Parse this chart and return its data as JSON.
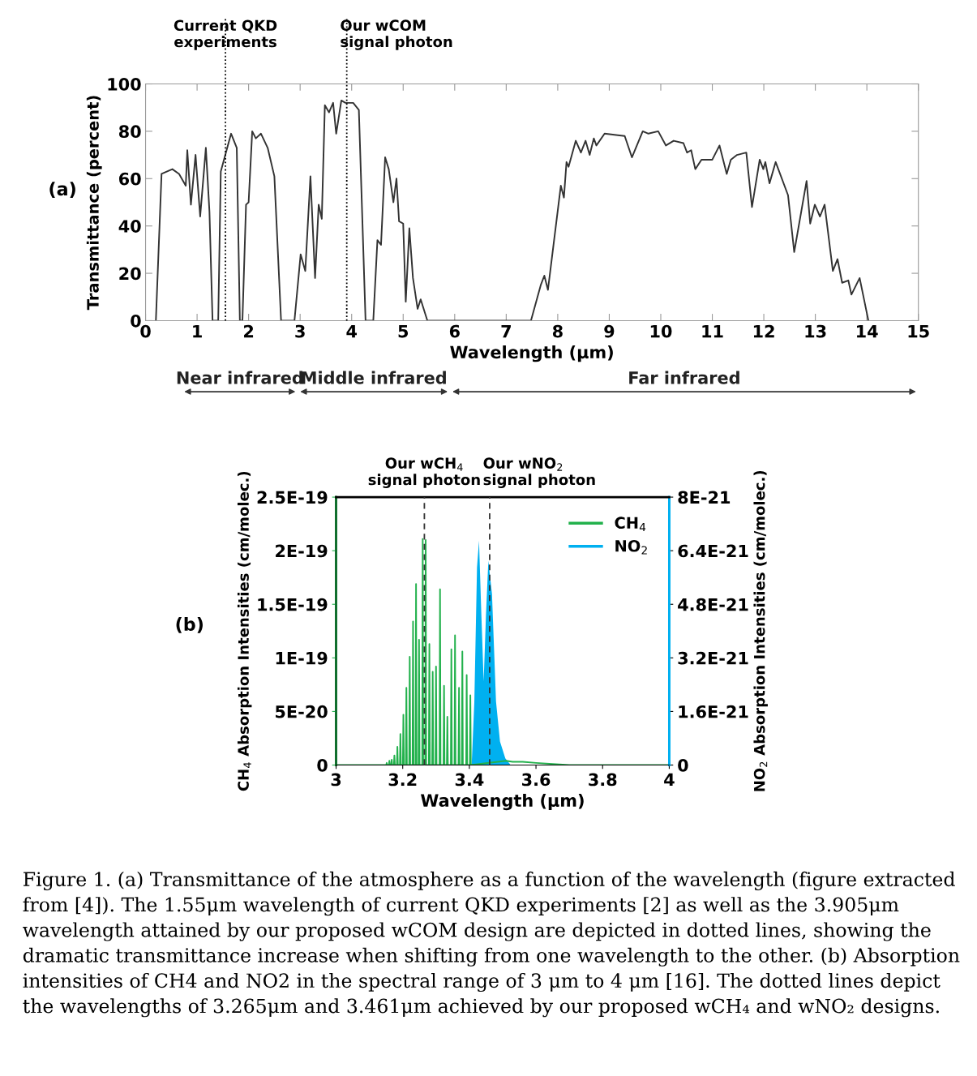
{
  "chart_data": [
    {
      "type": "line",
      "xlabel": "Wavelength (μm)",
      "ylabel": "Transmittance (percent)",
      "xlim": [
        0,
        15
      ],
      "xticks": [
        0,
        1,
        2,
        3,
        4,
        5,
        6,
        7,
        8,
        9,
        10,
        11,
        12,
        13,
        14,
        15
      ],
      "ylim": [
        0,
        100
      ],
      "yticks": [
        0,
        20,
        40,
        60,
        80,
        100
      ],
      "grid": false,
      "legend": false,
      "series": [
        {
          "color": "#333333",
          "x": [
            0.2,
            0.31,
            0.52,
            0.65,
            0.78,
            0.81,
            0.88,
            0.97,
            1.06,
            1.17,
            1.24,
            1.3,
            1.41,
            1.46,
            1.66,
            1.77,
            1.83,
            1.88,
            1.95,
            2.0,
            2.07,
            2.14,
            2.24,
            2.37,
            2.5,
            2.63,
            2.89,
            3.01,
            3.1,
            3.2,
            3.29,
            3.36,
            3.42,
            3.48,
            3.56,
            3.64,
            3.7,
            3.8,
            3.88,
            4.03,
            4.14,
            4.27,
            4.42,
            4.5,
            4.57,
            4.65,
            4.72,
            4.81,
            4.87,
            4.92,
            5.0,
            5.05,
            5.12,
            5.19,
            5.28,
            5.34,
            5.47,
            7.48,
            7.67,
            7.74,
            7.81,
            8.06,
            8.12,
            8.17,
            8.21,
            8.35,
            8.45,
            8.54,
            8.62,
            8.7,
            8.75,
            8.91,
            9.3,
            9.44,
            9.65,
            9.76,
            9.95,
            10.1,
            10.25,
            10.44,
            10.51,
            10.59,
            10.67,
            10.79,
            11.0,
            11.14,
            11.28,
            11.36,
            11.48,
            11.66,
            11.77,
            11.92,
            11.99,
            12.03,
            12.11,
            12.23,
            12.47,
            12.59,
            12.83,
            12.9,
            12.99,
            13.09,
            13.18,
            13.34,
            13.43,
            13.52,
            13.64,
            13.7,
            13.86,
            14.03
          ],
          "values": [
            0,
            62,
            64,
            62,
            57,
            72,
            49,
            70,
            44,
            73,
            46,
            0,
            0,
            63,
            79,
            73,
            0,
            0,
            49,
            50,
            80,
            77,
            79,
            73,
            61,
            0,
            0,
            28,
            21,
            61,
            18,
            49,
            43,
            91,
            88,
            92,
            79,
            93,
            92,
            92,
            89,
            0,
            0,
            34,
            32,
            69,
            64,
            50,
            60,
            42,
            41,
            8,
            39,
            18,
            5,
            9,
            0,
            0,
            15,
            19,
            13,
            57,
            52,
            67,
            65,
            76,
            71,
            76,
            70,
            77,
            74,
            79,
            78,
            69,
            80,
            79,
            80,
            74,
            76,
            75,
            71,
            72,
            64,
            68,
            68,
            74,
            62,
            68,
            70,
            71,
            48,
            68,
            64,
            67,
            58,
            67,
            53,
            29,
            59,
            41,
            49,
            44,
            49,
            21,
            26,
            16,
            17,
            11,
            18,
            0
          ]
        }
      ],
      "ref_lines": [
        {
          "axis": "x",
          "value": 1.55,
          "label": "Current QKD\nexperiments",
          "line_style": "dotted",
          "color": "#000000"
        },
        {
          "axis": "x",
          "value": 3.905,
          "label": "Our wCOM\nsignal photon",
          "line_style": "dotted",
          "color": "#000000"
        }
      ],
      "annotations": [
        "(a)",
        "Near infrared",
        "Middle infrared",
        "Far infrared"
      ]
    },
    {
      "type": "line",
      "xlabel": "Wavelength (μm)",
      "ylabel": "CH$_{4}$ Absorption Intensities (cm/molec.)",
      "y2label": "NO$_{2}$ Absorption Intensities (cm/molec.)",
      "xlim": [
        3,
        4
      ],
      "xticks": [
        3,
        3.2,
        3.4,
        3.6,
        3.8,
        4
      ],
      "ylim": [
        0,
        2.5e-19
      ],
      "yticks": [
        0,
        {
          "value": 5e-20,
          "label": "5E-20"
        },
        {
          "value": 1e-19,
          "label": "1E-19"
        },
        {
          "value": 1.5e-19,
          "label": "1.5E-19"
        },
        {
          "value": 2e-19,
          "label": "2E-19"
        },
        {
          "value": 2.5e-19,
          "label": "2.5E-19"
        }
      ],
      "y2lim": [
        0,
        8e-21
      ],
      "y2ticks": [
        0,
        {
          "value": 1.6e-21,
          "label": "1.6E-21"
        },
        {
          "value": 3.2e-21,
          "label": "3.2E-21"
        },
        {
          "value": 4.8e-21,
          "label": "4.8E-21"
        },
        {
          "value": 6.4e-21,
          "label": "6.4E-21"
        },
        {
          "value": 8e-21,
          "label": "8E-21"
        }
      ],
      "grid": false,
      "legend": "top right",
      "series": [
        {
          "name": "CH$_{4}$",
          "type": "line",
          "color": "#22b14c",
          "x": [
            3.0,
            3.1505,
            3.152,
            3.1535,
            3.1585,
            3.16,
            3.1615,
            3.1655,
            3.167,
            3.1685,
            3.1735,
            3.175,
            3.1765,
            3.1825,
            3.184,
            3.1855,
            3.1915,
            3.193,
            3.1945,
            3.2005,
            3.202,
            3.2035,
            3.2095,
            3.211,
            3.2125,
            3.2195,
            3.221,
            3.2225,
            3.2295,
            3.231,
            3.2325,
            3.2385,
            3.24,
            3.2415,
            3.2475,
            3.249,
            3.2505,
            3.2585,
            3.26,
            3.2615,
            3.2675,
            3.269,
            3.2705,
            3.2785,
            3.28,
            3.2815,
            3.2885,
            3.29,
            3.2915,
            3.2985,
            3.3,
            3.3015,
            3.3105,
            3.312,
            3.3135,
            3.3225,
            3.324,
            3.3255,
            3.3325,
            3.334,
            3.3355,
            3.3445,
            3.346,
            3.3475,
            3.3555,
            3.357,
            3.3585,
            3.3675,
            3.369,
            3.3705,
            3.3775,
            3.379,
            3.3805,
            3.3905,
            3.392,
            3.3935,
            3.4015,
            3.403,
            3.4045,
            3.51,
            3.53,
            3.56,
            3.6,
            3.7,
            4.0
          ],
          "values": [
            0,
            0,
            2e-21,
            0,
            0,
            4e-21,
            0,
            0,
            5e-21,
            0,
            0,
            9e-21,
            0,
            0,
            1.7e-20,
            0,
            0,
            2.9e-20,
            0,
            0,
            4.7e-20,
            0,
            0,
            7.2e-20,
            0,
            0,
            1.01e-19,
            0,
            0,
            1.34e-19,
            0,
            0,
            1.69e-19,
            0,
            0,
            1.17e-19,
            0,
            0,
            2.11e-19,
            0,
            0,
            2.1e-19,
            0,
            0,
            1.13e-19,
            0,
            0,
            8.7e-20,
            0,
            0,
            9.2e-20,
            0,
            0,
            1.64e-19,
            0,
            0,
            7.4e-20,
            0,
            0,
            4.5e-20,
            0,
            0,
            1.08e-19,
            0,
            0,
            1.21e-19,
            0,
            0,
            7.2e-20,
            0,
            0,
            1.06e-19,
            0,
            0,
            8.4e-20,
            0,
            0,
            6.5e-20,
            0,
            4e-21,
            3e-21,
            3e-21,
            2e-21,
            0,
            0
          ]
        },
        {
          "name": "NO$_{2}$",
          "type": "area",
          "axis": "y2",
          "color": "#00b0f0",
          "x": [
            3.0,
            3.407,
            3.415,
            3.423,
            3.429,
            3.436,
            3.443,
            3.45,
            3.457,
            3.468,
            3.48,
            3.492,
            3.508,
            3.524,
            4.0
          ],
          "values": [
            0,
            0,
            1.9e-21,
            5.9e-21,
            6.7e-21,
            4.5e-21,
            2.5e-21,
            4.5e-21,
            6.1e-21,
            5.1e-21,
            1.9e-21,
            7e-22,
            2e-22,
            0,
            0
          ]
        }
      ],
      "ref_lines": [
        {
          "axis": "x",
          "value": 3.265,
          "label": "Our wCH$_{4}$\nsignal photon",
          "line_style": "dashed",
          "color": "#333333"
        },
        {
          "axis": "x",
          "value": 3.461,
          "label": "Our wNO$_{2}$\nsignal photon",
          "line_style": "dashed",
          "color": "#333333"
        }
      ],
      "annotations": [
        "(b)",
        "Figure 1. (a) Transmittance of the atmosphere as a function of the wavelength (figure extracted from [4]). The 1.55μm wavelength of current QKD experiments [2] as well as the 3.905μm wavelength attained by our proposed wCOM design are depicted in dotted lines, showing the dramatic transmittance increase when shifting from one wavelength to the other. (b) Absorption intensities of CH4 and NO2 in the spectral range of 3 μm to 4 μm [16]. The dotted lines depict the wavelengths of 3.265μm and 3.461μm achieved by our proposed wCH₄ and wNO₂ designs."
      ]
    }
  ]
}
